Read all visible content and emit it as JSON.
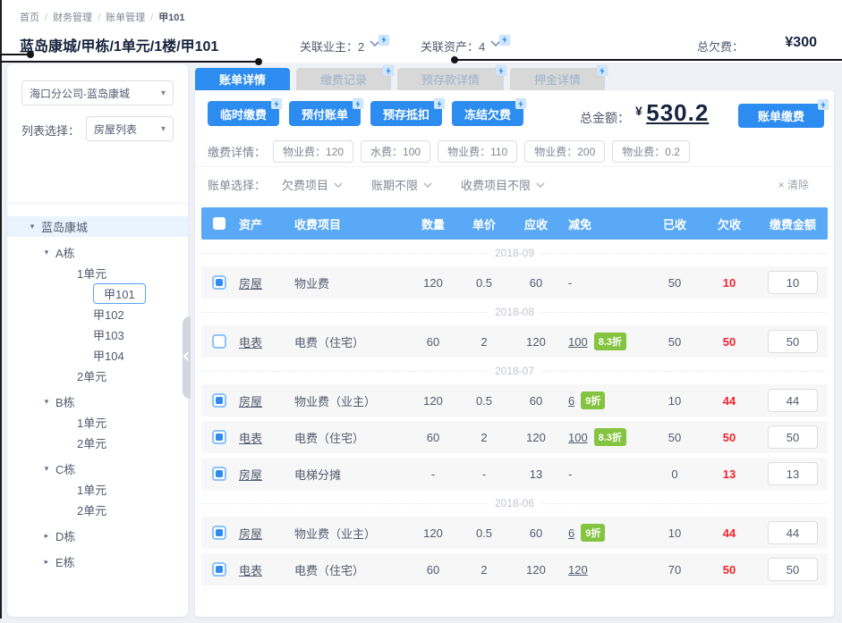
{
  "colors": {
    "primary": "#2d8cf0",
    "table_header": "#5aa9f6",
    "badge_green": "#85c440",
    "arrears_red": "#f5222d",
    "tree_selected_bg": "#eaf4fe"
  },
  "breadcrumb": [
    "首页",
    "财务管理",
    "账单管理",
    "甲101"
  ],
  "header": {
    "title": "蓝岛康城/甲栋/1单元/1楼/甲101",
    "related_owner": "关联业主：2",
    "related_asset": "关联资产：4",
    "total_arrears_label": "总欠费：",
    "total_arrears_value": "¥300"
  },
  "sidebar": {
    "company_select": "海口分公司-蓝岛康城",
    "list_select_label": "列表选择：",
    "list_select_value": "房屋列表",
    "tree": [
      {
        "label": "蓝岛康城",
        "level": 0,
        "caret": "down",
        "selected": true
      },
      {
        "label": "A栋",
        "level": 1,
        "caret": "down"
      },
      {
        "label": "1单元",
        "level": 2
      },
      {
        "label": "甲101",
        "level": 3,
        "active": true
      },
      {
        "label": "甲102",
        "level": 3
      },
      {
        "label": "甲103",
        "level": 3
      },
      {
        "label": "甲104",
        "level": 3
      },
      {
        "label": "2单元",
        "level": 2
      },
      {
        "label": "B栋",
        "level": 1,
        "caret": "down"
      },
      {
        "label": "1单元",
        "level": 2
      },
      {
        "label": "2单元",
        "level": 2
      },
      {
        "label": "C栋",
        "level": 1,
        "caret": "down"
      },
      {
        "label": "1单元",
        "level": 2
      },
      {
        "label": "2单元",
        "level": 2
      },
      {
        "label": "D栋",
        "level": 1,
        "caret": "right"
      },
      {
        "label": "E栋",
        "level": 1,
        "caret": "right"
      }
    ]
  },
  "tabs": [
    {
      "label": "账单详情",
      "active": true,
      "spark": false
    },
    {
      "label": "缴费记录",
      "active": false,
      "spark": true
    },
    {
      "label": "预存款详情",
      "active": false,
      "spark": true
    },
    {
      "label": "押金详情",
      "active": false,
      "spark": true
    }
  ],
  "actions": [
    "临时缴费",
    "预付账单",
    "预存抵扣",
    "冻结欠费"
  ],
  "summary": {
    "total_label": "总金额：",
    "currency": "¥",
    "amount": "530.2",
    "pay_button": "账单缴费"
  },
  "payment_detail": {
    "label": "缴费详情：",
    "chips": [
      "物业费：120",
      "水费：100",
      "物业费：110",
      "物业费：200",
      "物业费：0.2"
    ]
  },
  "bill_filter": {
    "label": "账单选择：",
    "filters": [
      "欠费项目",
      "账期不限",
      "收费项目不限"
    ],
    "clear": "× 清除"
  },
  "table": {
    "headers": [
      "资产",
      "收费项目",
      "数量",
      "单价",
      "应收",
      "减免",
      "已收",
      "欠收",
      "缴费金额"
    ],
    "groups": [
      {
        "date": "2018-09",
        "rows": [
          {
            "checked": true,
            "asset": "房屋",
            "item": "物业费",
            "qty": "120",
            "price": "0.5",
            "due": "60",
            "discount": "-",
            "badge": "",
            "received": "50",
            "arrears": "10",
            "pay": "10"
          }
        ]
      },
      {
        "date": "2018-08",
        "rows": [
          {
            "checked": false,
            "asset": "电表",
            "item": "电费（住宅）",
            "qty": "60",
            "price": "2",
            "due": "120",
            "discount": "100",
            "badge": "8.3折",
            "received": "50",
            "arrears": "50",
            "pay": "50"
          }
        ]
      },
      {
        "date": "2018-07",
        "rows": [
          {
            "checked": true,
            "asset": "房屋",
            "item": "物业费（业主）",
            "qty": "120",
            "price": "0.5",
            "due": "60",
            "discount": "6",
            "badge": "9折",
            "received": "10",
            "arrears": "44",
            "pay": "44"
          },
          {
            "checked": true,
            "asset": "电表",
            "item": "电费（住宅）",
            "qty": "60",
            "price": "2",
            "due": "120",
            "discount": "100",
            "badge": "8.3折",
            "received": "50",
            "arrears": "50",
            "pay": "50"
          },
          {
            "checked": true,
            "asset": "房屋",
            "item": "电梯分摊",
            "qty": "-",
            "price": "-",
            "due": "13",
            "discount": "-",
            "badge": "",
            "received": "0",
            "arrears": "13",
            "pay": "13"
          }
        ]
      },
      {
        "date": "2018-06",
        "rows": [
          {
            "checked": true,
            "asset": "房屋",
            "item": "物业费（业主）",
            "qty": "120",
            "price": "0.5",
            "due": "60",
            "discount": "6",
            "badge": "9折",
            "received": "10",
            "arrears": "44",
            "pay": "44"
          },
          {
            "checked": true,
            "asset": "电表",
            "item": "电费（住宅）",
            "qty": "60",
            "price": "2",
            "due": "120",
            "discount": "120",
            "badge": "",
            "received": "70",
            "arrears": "50",
            "pay": "50"
          }
        ]
      }
    ]
  }
}
